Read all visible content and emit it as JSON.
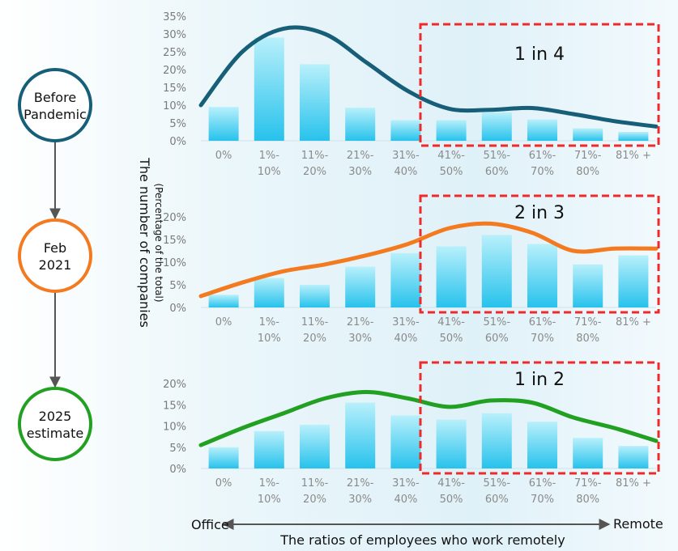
{
  "timeline": [
    {
      "lines": [
        "Before",
        "Pandemic"
      ],
      "color": "#175f78"
    },
    {
      "lines": [
        "Feb",
        "2021"
      ],
      "color": "#f47a20"
    },
    {
      "lines": [
        "2025",
        "estimate"
      ],
      "color": "#21a021"
    }
  ],
  "y_axis_title": "The number of companies",
  "y_axis_subtitle": "(Percentage of the total)",
  "x_axis_title": "The ratios of employees who work remotely",
  "x_left_label": "Office",
  "x_right_label": "Remote",
  "chart_data": [
    {
      "type": "bar",
      "title": "",
      "categories": [
        "0%",
        "1%-10%",
        "11%-20%",
        "21%-30%",
        "31%-40%",
        "41%-50%",
        "51%-60%",
        "61%-70%",
        "71%-80%",
        "81% +"
      ],
      "tick_lines": [
        [
          "0%"
        ],
        [
          "1%-",
          "10%"
        ],
        [
          "11%-",
          "20%"
        ],
        [
          "21%-",
          "30%"
        ],
        [
          "31%-",
          "40%"
        ],
        [
          "41%-",
          "50%"
        ],
        [
          "51%-",
          "60%"
        ],
        [
          "61%-",
          "70%"
        ],
        [
          "71%-",
          "80%"
        ],
        [
          "81% +"
        ]
      ],
      "values": [
        9.5,
        29,
        21.5,
        9.3,
        5.8,
        5.8,
        8,
        6,
        3.5,
        2.5
      ],
      "trend": [
        10,
        25,
        31.5,
        30,
        22,
        14,
        9,
        8.7,
        9.2,
        7.5,
        5.5,
        4
      ],
      "trend_color": "#175f78",
      "ylim": [
        0,
        35
      ],
      "yticks": [
        "0%",
        "5%",
        "10%",
        "15%",
        "20%",
        "25%",
        "30%",
        "35%"
      ],
      "highlight_label": "1 in 4",
      "highlight_color": "#ee2a2a"
    },
    {
      "type": "bar",
      "title": "",
      "categories": [
        "0%",
        "1%-10%",
        "11%-20%",
        "21%-30%",
        "31%-40%",
        "41%-50%",
        "51%-60%",
        "61%-70%",
        "71%-80%",
        "81% +"
      ],
      "tick_lines": [
        [
          "0%"
        ],
        [
          "1%-",
          "10%"
        ],
        [
          "11%-",
          "20%"
        ],
        [
          "21%-",
          "30%"
        ],
        [
          "31%-",
          "40%"
        ],
        [
          "41%-",
          "50%"
        ],
        [
          "51%-",
          "60%"
        ],
        [
          "61%-",
          "70%"
        ],
        [
          "71%-",
          "80%"
        ],
        [
          "81% +"
        ]
      ],
      "values": [
        2.8,
        6.5,
        5,
        9,
        12,
        13.5,
        16,
        14,
        9.5,
        11.5
      ],
      "trend": [
        2.5,
        5.5,
        8,
        9.5,
        11.5,
        14,
        17.5,
        18.5,
        16.5,
        12.5,
        13,
        13
      ],
      "trend_color": "#f47a20",
      "ylim": [
        0,
        20
      ],
      "yticks": [
        "0%",
        "5%",
        "10%",
        "15%",
        "20%"
      ],
      "highlight_label": "2 in 3",
      "highlight_color": "#ee2a2a"
    },
    {
      "type": "bar",
      "title": "",
      "categories": [
        "0%",
        "1%-10%",
        "11%-20%",
        "21%-30%",
        "31%-40%",
        "41%-50%",
        "51%-60%",
        "61%-70%",
        "71%-80%",
        "81% +"
      ],
      "tick_lines": [
        [
          "0%"
        ],
        [
          "1%-",
          "10%"
        ],
        [
          "11%-",
          "20%"
        ],
        [
          "21%-",
          "30%"
        ],
        [
          "31%-",
          "40%"
        ],
        [
          "41%-",
          "50%"
        ],
        [
          "51%-",
          "60%"
        ],
        [
          "61%-",
          "70%"
        ],
        [
          "71%-",
          "80%"
        ],
        [
          "81% +"
        ]
      ],
      "values": [
        5,
        8.8,
        10.3,
        15.5,
        12.5,
        11.5,
        13,
        11,
        7.2,
        5.3
      ],
      "trend": [
        5.5,
        9.5,
        13,
        16.5,
        18,
        16.5,
        14.5,
        16,
        15.5,
        12,
        9.5,
        6.5
      ],
      "trend_color": "#21a021",
      "ylim": [
        0,
        20
      ],
      "yticks": [
        "0%",
        "5%",
        "10%",
        "15%",
        "20%"
      ],
      "highlight_label": "1 in 2",
      "highlight_color": "#ee2a2a"
    }
  ]
}
